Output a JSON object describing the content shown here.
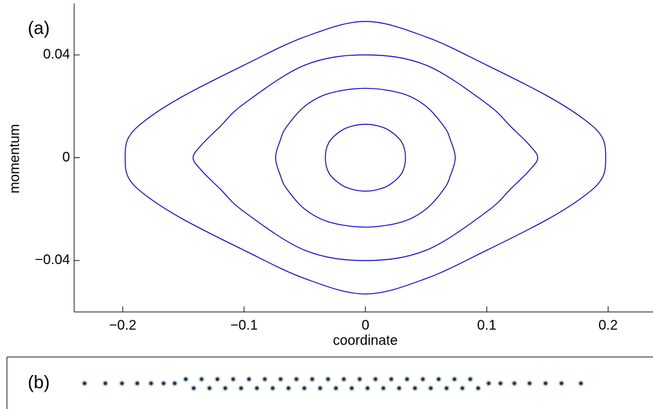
{
  "chart_data": {
    "type": "line",
    "panel_label": "(a)",
    "xlabel": "coordinate",
    "ylabel": "momentum",
    "xlim": [
      -0.24,
      0.237
    ],
    "ylim": [
      -0.06,
      0.06
    ],
    "xticks": [
      {
        "value": -0.2,
        "label": "−0.2"
      },
      {
        "value": -0.1,
        "label": "−0.1"
      },
      0,
      0.1,
      0.2
    ],
    "yticks": [
      {
        "value": -0.04,
        "label": "−0.04"
      },
      0,
      0.04
    ],
    "series": [
      {
        "color": "#0000cc",
        "x": [
          -0.033,
          -0.03,
          -0.02,
          -0.01,
          0,
          0.01,
          0.02,
          0.03,
          0.033,
          0.03,
          0.02,
          0.01,
          0,
          -0.01,
          -0.02,
          -0.03
        ],
        "values": [
          0,
          0.006,
          0.0105,
          0.0124,
          0.013,
          0.0124,
          0.0105,
          0.006,
          0,
          -0.006,
          -0.0105,
          -0.0124,
          -0.013,
          -0.0124,
          -0.0105,
          -0.006
        ]
      },
      {
        "color": "#0000cc",
        "x": [
          -0.074,
          -0.07,
          -0.065,
          -0.05,
          -0.03,
          0,
          0.03,
          0.05,
          0.065,
          0.07,
          0.074,
          0.07,
          0.065,
          0.05,
          0.03,
          0,
          -0.03,
          -0.05,
          -0.065,
          -0.07
        ],
        "values": [
          0,
          0.007,
          0.012,
          0.02,
          0.025,
          0.027,
          0.025,
          0.02,
          0.012,
          0.007,
          0,
          -0.007,
          -0.012,
          -0.02,
          -0.025,
          -0.027,
          -0.025,
          -0.02,
          -0.012,
          -0.007
        ]
      },
      {
        "color": "#0000cc",
        "x": [
          -0.142,
          -0.135,
          -0.12,
          -0.1,
          -0.05,
          0,
          0.05,
          0.1,
          0.12,
          0.135,
          0.142,
          0.135,
          0.12,
          0.1,
          0.05,
          0,
          -0.05,
          -0.1,
          -0.12,
          -0.135
        ],
        "values": [
          0,
          0.005,
          0.012,
          0.021,
          0.036,
          0.04,
          0.036,
          0.021,
          0.012,
          0.005,
          0,
          -0.005,
          -0.012,
          -0.021,
          -0.036,
          -0.04,
          -0.036,
          -0.021,
          -0.012,
          -0.005
        ]
      },
      {
        "color": "#0000cc",
        "x": [
          -0.198,
          -0.195,
          -0.18,
          -0.15,
          -0.1,
          -0.05,
          0,
          0.05,
          0.1,
          0.15,
          0.18,
          0.195,
          0.198,
          0.195,
          0.18,
          0.15,
          0.1,
          0.05,
          0,
          -0.05,
          -0.1,
          -0.15,
          -0.18,
          -0.195
        ],
        "values": [
          0,
          0.008,
          0.015,
          0.024,
          0.036,
          0.047,
          0.053,
          0.047,
          0.036,
          0.024,
          0.015,
          0.008,
          0,
          -0.008,
          -0.015,
          -0.024,
          -0.036,
          -0.047,
          -0.053,
          -0.047,
          -0.036,
          -0.024,
          -0.015,
          -0.008
        ]
      }
    ]
  },
  "panel_b": {
    "label": "(b)"
  }
}
